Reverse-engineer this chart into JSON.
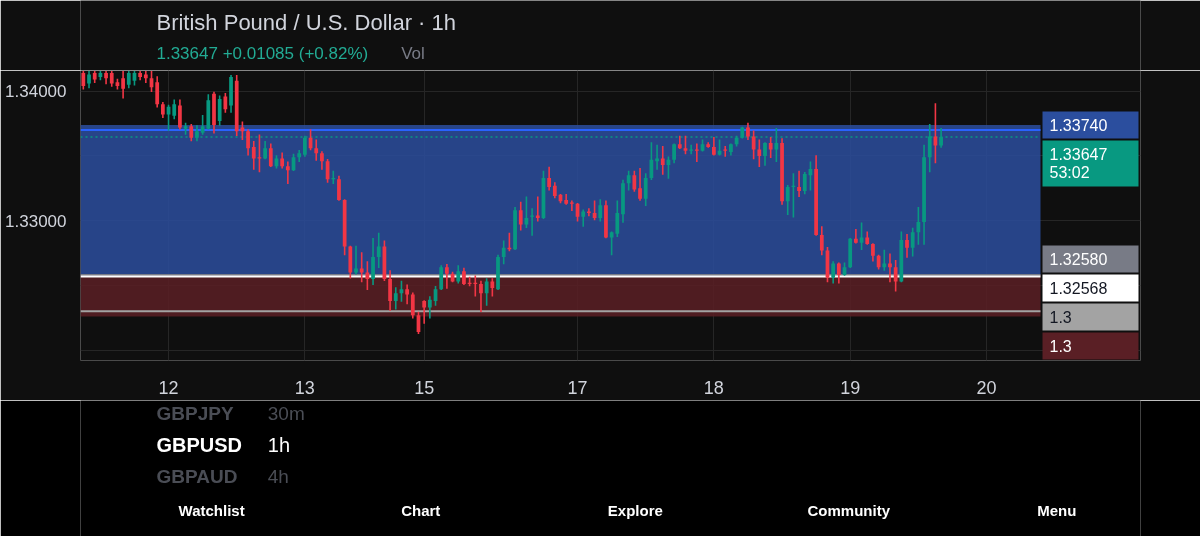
{
  "chart_data": {
    "type": "candlestick",
    "title": "British Pound / U.S. Dollar · 1h",
    "subtitle": "1.33647 +0.01085 (+0.82%)",
    "annotations": [
      "Vol",
      "GBPJPY",
      "30m",
      "GBPUSD",
      "1h",
      "GBPAUD",
      "4h",
      "Watchlist",
      "Chart",
      "Explore",
      "Community",
      "Menu"
    ],
    "categories": [
      null,
      null,
      null,
      null,
      null,
      null,
      null,
      null,
      null,
      null,
      null,
      null,
      null,
      null,
      null,
      "12",
      null,
      null,
      null,
      null,
      null,
      null,
      null,
      null,
      null,
      null,
      null,
      null,
      null,
      null,
      null,
      null,
      null,
      null,
      null,
      null,
      null,
      null,
      null,
      "13",
      null,
      null,
      null,
      null,
      null,
      null,
      null,
      null,
      null,
      null,
      null,
      null,
      null,
      null,
      null,
      null,
      null,
      null,
      null,
      null,
      "15",
      null,
      null,
      null,
      null,
      null,
      null,
      null,
      null,
      null,
      null,
      null,
      null,
      null,
      null,
      null,
      null,
      null,
      null,
      null,
      null,
      null,
      null,
      null,
      null,
      null,
      null,
      "17",
      null,
      null,
      null,
      null,
      null,
      null,
      null,
      null,
      null,
      null,
      null,
      null,
      null,
      null,
      null,
      null,
      null,
      null,
      null,
      null,
      null,
      null,
      null,
      "18",
      null,
      null,
      null,
      null,
      null,
      null,
      null,
      null,
      null,
      null,
      null,
      null,
      null,
      null,
      null,
      null,
      null,
      null,
      null,
      null,
      null,
      null,
      null,
      "19",
      null,
      null,
      null,
      null,
      null,
      null,
      null,
      null,
      null,
      null,
      null,
      null,
      null,
      null,
      null,
      null,
      null,
      null,
      null,
      null,
      null,
      null,
      null,
      "20",
      null,
      null,
      null,
      null,
      null,
      null,
      null,
      null,
      null
    ],
    "ohlc": [
      [
        1.3414,
        1.3415,
        1.3402,
        1.3404
      ],
      [
        1.3406,
        1.3415,
        1.3403,
        1.3413
      ],
      [
        1.3414,
        1.3415,
        1.3407,
        1.3409
      ],
      [
        1.3411,
        1.3415,
        1.3409,
        1.3414
      ],
      [
        1.3414,
        1.3415,
        1.3406,
        1.341
      ],
      [
        1.3414,
        1.3415,
        1.3404,
        1.3406
      ],
      [
        1.3407,
        1.3409,
        1.3402,
        1.3404
      ],
      [
        1.341,
        1.3415,
        1.3395,
        1.3402
      ],
      [
        1.3405,
        1.3415,
        1.3403,
        1.3414
      ],
      [
        1.3408,
        1.3415,
        1.3405,
        1.3414
      ],
      [
        1.3414,
        1.3415,
        1.3409,
        1.3411
      ],
      [
        1.3413,
        1.3415,
        1.3407,
        1.341
      ],
      [
        1.341,
        1.3415,
        1.34,
        1.3403
      ],
      [
        1.3407,
        1.3411,
        1.3388,
        1.339
      ],
      [
        1.339,
        1.3391,
        1.338,
        1.3382
      ],
      [
        1.3382,
        1.3389,
        1.337,
        1.3388
      ],
      [
        1.3381,
        1.3393,
        1.3379,
        1.339
      ],
      [
        1.3389,
        1.3393,
        1.3371,
        1.3372
      ],
      [
        1.3371,
        1.3375,
        1.3367,
        1.3373
      ],
      [
        1.3373,
        1.3374,
        1.3362,
        1.3364
      ],
      [
        1.3364,
        1.3373,
        1.3362,
        1.3369
      ],
      [
        1.3368,
        1.3381,
        1.3367,
        1.3373
      ],
      [
        1.3371,
        1.3397,
        1.3371,
        1.3393
      ],
      [
        1.3398,
        1.3399,
        1.3368,
        1.3374
      ],
      [
        1.3377,
        1.3396,
        1.3374,
        1.3394
      ],
      [
        1.3396,
        1.3398,
        1.3384,
        1.3386
      ],
      [
        1.3389,
        1.3412,
        1.3384,
        1.3411
      ],
      [
        1.3408,
        1.3412,
        1.3366,
        1.3369
      ],
      [
        1.3372,
        1.3376,
        1.3363,
        1.3369
      ],
      [
        1.3369,
        1.337,
        1.3351,
        1.3356
      ],
      [
        1.3357,
        1.3361,
        1.334,
        1.3348
      ],
      [
        1.3349,
        1.3366,
        1.3338,
        1.3348
      ],
      [
        1.3348,
        1.3361,
        1.3348,
        1.3356
      ],
      [
        1.3356,
        1.3359,
        1.3342,
        1.3342
      ],
      [
        1.3342,
        1.335,
        1.3341,
        1.3348
      ],
      [
        1.3348,
        1.3352,
        1.3341,
        1.3342
      ],
      [
        1.3342,
        1.3345,
        1.3329,
        1.3339
      ],
      [
        1.3339,
        1.3351,
        1.3339,
        1.3349
      ],
      [
        1.3349,
        1.3354,
        1.3346,
        1.3352
      ],
      [
        1.3351,
        1.3365,
        1.335,
        1.3364
      ],
      [
        1.3364,
        1.337,
        1.3355,
        1.3356
      ],
      [
        1.3356,
        1.3362,
        1.3347,
        1.3352
      ],
      [
        1.3352,
        1.3353,
        1.334,
        1.3346
      ],
      [
        1.3346,
        1.3347,
        1.333,
        1.3332
      ],
      [
        1.3332,
        1.3338,
        1.3329,
        1.3333
      ],
      [
        1.3332,
        1.3334,
        1.3316,
        1.3316
      ],
      [
        1.3316,
        1.3316,
        1.3274,
        1.328
      ],
      [
        1.328,
        1.328,
        1.3256,
        1.326
      ],
      [
        1.326,
        1.328,
        1.3259,
        1.3263
      ],
      [
        1.3263,
        1.3275,
        1.3253,
        1.326
      ],
      [
        1.326,
        1.3268,
        1.3247,
        1.3255
      ],
      [
        1.3255,
        1.3286,
        1.3251,
        1.3272
      ],
      [
        1.3272,
        1.329,
        1.3264,
        1.328
      ],
      [
        1.328,
        1.3284,
        1.3254,
        1.3255
      ],
      [
        1.3255,
        1.3261,
        1.3231,
        1.3238
      ],
      [
        1.3238,
        1.3248,
        1.3232,
        1.3244
      ],
      [
        1.3244,
        1.3253,
        1.3238,
        1.3247
      ],
      [
        1.3247,
        1.325,
        1.3236,
        1.3243
      ],
      [
        1.3243,
        1.3244,
        1.3225,
        1.3227
      ],
      [
        1.3227,
        1.3229,
        1.3213,
        1.3214
      ],
      [
        1.3238,
        1.3238,
        1.3221,
        1.3233
      ],
      [
        1.3233,
        1.3241,
        1.3225,
        1.3239
      ],
      [
        1.3238,
        1.3249,
        1.3235,
        1.3247
      ],
      [
        1.3247,
        1.3265,
        1.3247,
        1.3264
      ],
      [
        1.3264,
        1.3266,
        1.3248,
        1.3259
      ],
      [
        1.3259,
        1.326,
        1.3253,
        1.3253
      ],
      [
        1.3253,
        1.3265,
        1.3252,
        1.3261
      ],
      [
        1.3261,
        1.3263,
        1.3251,
        1.3251
      ],
      [
        1.3252,
        1.3256,
        1.325,
        1.3251
      ],
      [
        1.3252,
        1.3257,
        1.3242,
        1.3251
      ],
      [
        1.3251,
        1.3253,
        1.323,
        1.3244
      ],
      [
        1.3244,
        1.3255,
        1.3235,
        1.3253
      ],
      [
        1.3253,
        1.3255,
        1.3242,
        1.3248
      ],
      [
        1.3247,
        1.3273,
        1.3247,
        1.3272
      ],
      [
        1.3272,
        1.3284,
        1.3267,
        1.3279
      ],
      [
        1.3279,
        1.329,
        1.3277,
        1.3278
      ],
      [
        1.3278,
        1.331,
        1.3278,
        1.3308
      ],
      [
        1.3308,
        1.3314,
        1.3293,
        1.3297
      ],
      [
        1.3297,
        1.3318,
        1.3295,
        1.3302
      ],
      [
        1.3303,
        1.3309,
        1.3289,
        1.3304
      ],
      [
        1.3304,
        1.3318,
        1.33,
        1.3302
      ],
      [
        1.3302,
        1.3338,
        1.3302,
        1.3333
      ],
      [
        1.3333,
        1.3341,
        1.3324,
        1.3326
      ],
      [
        1.3327,
        1.3329,
        1.3318,
        1.3319
      ],
      [
        1.332,
        1.332,
        1.3314,
        1.3315
      ],
      [
        1.3316,
        1.332,
        1.3313,
        1.3313
      ],
      [
        1.3314,
        1.3315,
        1.3308,
        1.3313
      ],
      [
        1.3313,
        1.3313,
        1.33,
        1.3303
      ],
      [
        1.3303,
        1.3308,
        1.3296,
        1.3307
      ],
      [
        1.3307,
        1.3309,
        1.3304,
        1.3306
      ],
      [
        1.3306,
        1.3315,
        1.3301,
        1.3302
      ],
      [
        1.3302,
        1.3316,
        1.33,
        1.3312
      ],
      [
        1.3312,
        1.3315,
        1.3287,
        1.3287
      ],
      [
        1.3287,
        1.3291,
        1.3274,
        1.3291
      ],
      [
        1.329,
        1.3315,
        1.3288,
        1.3306
      ],
      [
        1.3305,
        1.3331,
        1.3299,
        1.3329
      ],
      [
        1.3329,
        1.3338,
        1.3324,
        1.3335
      ],
      [
        1.3335,
        1.3338,
        1.3323,
        1.3324
      ],
      [
        1.3325,
        1.334,
        1.3316,
        1.3317
      ],
      [
        1.3317,
        1.3336,
        1.3312,
        1.3333
      ],
      [
        1.3333,
        1.336,
        1.3332,
        1.3347
      ],
      [
        1.3346,
        1.3358,
        1.334,
        1.3348
      ],
      [
        1.3348,
        1.3357,
        1.3336,
        1.3343
      ],
      [
        1.3343,
        1.3349,
        1.3333,
        1.3347
      ],
      [
        1.3347,
        1.3359,
        1.3345,
        1.3359
      ],
      [
        1.3359,
        1.3365,
        1.3356,
        1.3356
      ],
      [
        1.3356,
        1.3365,
        1.3352,
        1.3354
      ],
      [
        1.3354,
        1.3358,
        1.3352,
        1.3355
      ],
      [
        1.3355,
        1.3359,
        1.3346,
        1.3354
      ],
      [
        1.3354,
        1.3362,
        1.3354,
        1.3359
      ],
      [
        1.3359,
        1.336,
        1.3357,
        1.3357
      ],
      [
        1.3357,
        1.3364,
        1.3351,
        1.3351
      ],
      [
        1.3351,
        1.3362,
        1.3351,
        1.3354
      ],
      [
        1.3355,
        1.3357,
        1.335,
        1.3354
      ],
      [
        1.3353,
        1.3359,
        1.3351,
        1.3359
      ],
      [
        1.3359,
        1.3365,
        1.3358,
        1.3364
      ],
      [
        1.3364,
        1.3372,
        1.3364,
        1.3372
      ],
      [
        1.3372,
        1.3375,
        1.3363,
        1.3365
      ],
      [
        1.3365,
        1.3369,
        1.3348,
        1.3355
      ],
      [
        1.3355,
        1.3362,
        1.3342,
        1.335
      ],
      [
        1.335,
        1.336,
        1.3343,
        1.336
      ],
      [
        1.336,
        1.3364,
        1.3349,
        1.3355
      ],
      [
        1.3355,
        1.3371,
        1.3346,
        1.336
      ],
      [
        1.336,
        1.3363,
        1.3313,
        1.3315
      ],
      [
        1.3315,
        1.3327,
        1.3305,
        1.3326
      ],
      [
        1.3326,
        1.3336,
        1.3303,
        1.3327
      ],
      [
        1.3326,
        1.3338,
        1.3319,
        1.3323
      ],
      [
        1.3323,
        1.3337,
        1.3321,
        1.3336
      ],
      [
        1.3335,
        1.3345,
        1.3324,
        1.334
      ],
      [
        1.334,
        1.335,
        1.3289,
        1.3289
      ],
      [
        1.3289,
        1.3295,
        1.3274,
        1.3277
      ],
      [
        1.3277,
        1.3279,
        1.3253,
        1.3256
      ],
      [
        1.3256,
        1.3268,
        1.3252,
        1.3267
      ],
      [
        1.3267,
        1.3267,
        1.3252,
        1.3258
      ],
      [
        1.3258,
        1.3267,
        1.3258,
        1.3264
      ],
      [
        1.3264,
        1.3286,
        1.3264,
        1.3286
      ],
      [
        1.3286,
        1.3293,
        1.3283,
        1.3283
      ],
      [
        1.3283,
        1.3298,
        1.3278,
        1.3287
      ],
      [
        1.3287,
        1.3291,
        1.3282,
        1.3282
      ],
      [
        1.3282,
        1.3282,
        1.3269,
        1.3273
      ],
      [
        1.3273,
        1.3273,
        1.3263,
        1.3264
      ],
      [
        1.3264,
        1.3277,
        1.3262,
        1.3267
      ],
      [
        1.3267,
        1.3274,
        1.3253,
        1.3264
      ],
      [
        1.3264,
        1.3269,
        1.3246,
        1.3253
      ],
      [
        1.3253,
        1.3291,
        1.3253,
        1.3285
      ],
      [
        1.3285,
        1.3289,
        1.3272,
        1.3279
      ],
      [
        1.3279,
        1.3294,
        1.3273,
        1.3291
      ],
      [
        1.3291,
        1.331,
        1.3282,
        1.3299
      ],
      [
        1.3299,
        1.3358,
        1.3282,
        1.3349
      ],
      [
        1.3349,
        1.3374,
        1.3338,
        1.3365
      ],
      [
        1.3365,
        1.339,
        1.3345,
        1.3358
      ],
      [
        1.3358,
        1.3371,
        1.3357,
        1.33647
      ],
      null,
      null,
      null,
      null,
      null,
      null,
      null,
      null,
      null,
      null,
      null,
      null,
      null,
      null,
      null,
      null,
      null
    ],
    "colors": [
      "#f23645",
      "#089981",
      "#f23645",
      "#089981",
      "#f23645",
      "#f23645",
      "#f23645",
      "#f23645",
      "#089981",
      "#089981",
      "#f23645",
      "#f23645",
      "#f23645",
      "#f23645",
      "#f23645",
      "#089981",
      "#089981",
      "#f23645",
      "#089981",
      "#f23645",
      "#089981",
      "#089981",
      "#089981",
      "#f23645",
      "#089981",
      "#f23645",
      "#089981",
      "#f23645",
      "#f23645",
      "#f23645",
      "#f23645",
      "#f23645",
      "#089981",
      "#f23645",
      "#089981",
      "#f23645",
      "#f23645",
      "#089981",
      "#089981",
      "#089981",
      "#f23645",
      "#f23645",
      "#f23645",
      "#f23645",
      "#089981",
      "#f23645",
      "#f23645",
      "#f23645",
      "#089981",
      "#f23645",
      "#f23645",
      "#089981",
      "#089981",
      "#f23645",
      "#f23645",
      "#089981",
      "#089981",
      "#f23645",
      "#f23645",
      "#f23645",
      "#f23645",
      "#089981",
      "#089981",
      "#089981",
      "#f23645",
      "#f23645",
      "#089981",
      "#f23645",
      "#f23645",
      "#f23645",
      "#f23645",
      "#089981",
      "#f23645",
      "#089981",
      "#089981",
      "#f23645",
      "#089981",
      "#f23645",
      "#089981",
      "#089981",
      "#f23645",
      "#089981",
      "#f23645",
      "#f23645",
      "#f23645",
      "#f23645",
      "#f23645",
      "#f23645",
      "#089981",
      "#f23645",
      "#f23645",
      "#089981",
      "#f23645",
      "#089981",
      "#089981",
      "#089981",
      "#089981",
      "#f23645",
      "#f23645",
      "#089981",
      "#089981",
      "#089981",
      "#f23645",
      "#089981",
      "#089981",
      "#f23645",
      "#f23645",
      "#089981",
      "#f23645",
      "#089981",
      "#f23645",
      "#f23645",
      "#089981",
      "#f23645",
      "#089981",
      "#089981",
      "#089981",
      "#f23645",
      "#f23645",
      "#f23645",
      "#089981",
      "#f23645",
      "#089981",
      "#f23645",
      "#089981",
      "#089981",
      "#f23645",
      "#089981",
      "#089981",
      "#f23645",
      "#f23645",
      "#f23645",
      "#089981",
      "#f23645",
      "#089981",
      "#089981",
      "#f23645",
      "#089981",
      "#f23645",
      "#f23645",
      "#f23645",
      "#089981",
      "#f23645",
      "#f23645",
      "#089981",
      "#f23645",
      "#089981",
      "#089981",
      "#089981",
      "#089981",
      "#f23645",
      "#089981",
      null,
      null,
      null,
      null,
      null,
      null,
      null,
      null,
      null,
      null,
      null,
      null,
      null,
      null,
      null,
      null,
      null
    ],
    "ylim": [
      1.3192,
      1.3416
    ],
    "yticks": [
      {
        "value": 1.34,
        "label": "1.34000"
      },
      {
        "value": 1.335,
        "label": null
      },
      {
        "value": 1.33,
        "label": "1.33000"
      },
      {
        "value": 1.325,
        "label": null
      },
      {
        "value": 1.32,
        "label": null
      }
    ],
    "grid": true,
    "ref_lines": [
      {
        "axis": "y",
        "value": 1.33647,
        "label": "1.33647\n53:02",
        "color": "#089981",
        "line_style": "dotted"
      },
      {
        "axis": "y",
        "value": 1.337,
        "color": "#2962ff",
        "line_style": "solid"
      },
      {
        "axis": "y",
        "value": 1.3258,
        "label": "1.32580",
        "color": "#787b86",
        "line_style": "solid"
      },
      {
        "axis": "y",
        "value": 1.32568,
        "label": "1.32568",
        "color": "#ffffff",
        "line_style": "solid"
      },
      {
        "axis": "y",
        "value": 1.323,
        "label": "1.3",
        "color": "#a3a3a3",
        "line_style": "solid"
      }
    ],
    "bands": [
      {
        "axis": "y",
        "from": 1.3258,
        "to": 1.3374,
        "label": "1.33740",
        "color": "#2b4e9e"
      },
      {
        "axis": "y",
        "from": 1.3258,
        "to": 1.3226,
        "label": "1.3",
        "color": "#5a1f25"
      }
    ]
  }
}
